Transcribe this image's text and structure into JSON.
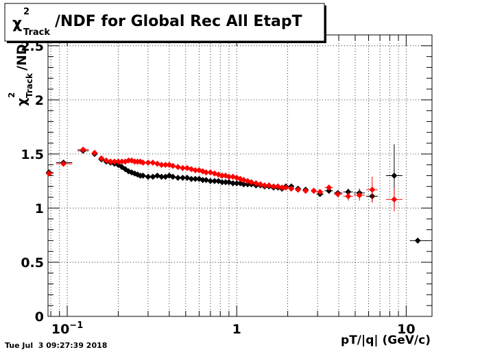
{
  "chart_data": {
    "type": "scatter",
    "title": {
      "symbol": "χ",
      "superscript": "2",
      "subscript": "Track",
      "rest": "/NDF for Global Rec All EtapT"
    },
    "xlabel": "pT/|q| (GeV/c)",
    "ylabel": {
      "symbol": "χ",
      "superscript": "2",
      "subscript": "Track",
      "rest": "/ND"
    },
    "x_scale": "log",
    "xlim": [
      0.077,
      14.2
    ],
    "ylim": [
      0,
      2.6
    ],
    "grid": true,
    "timestamp": "Tue Jul  3 09:27:39 2018",
    "x_ticks": [
      {
        "value": 0.1,
        "base": "10",
        "exp": "−1"
      },
      {
        "value": 1,
        "base": "1",
        "exp": ""
      },
      {
        "value": 10,
        "base": "10",
        "exp": ""
      }
    ],
    "y_ticks": [
      {
        "value": 0,
        "label": "0"
      },
      {
        "value": 0.5,
        "label": "0.5"
      },
      {
        "value": 1,
        "label": "1"
      },
      {
        "value": 1.5,
        "label": "1.5"
      },
      {
        "value": 2,
        "label": "2"
      },
      {
        "value": 2.5,
        "label": "2.5"
      }
    ],
    "series": [
      {
        "color": "#000000",
        "points": [
          {
            "x": 0.078,
            "y": 1.33,
            "xlo": 0.075,
            "xhi": 0.083,
            "yerr": 0.02
          },
          {
            "x": 0.095,
            "y": 1.42,
            "xlo": 0.086,
            "xhi": 0.107,
            "yerr": 0.02
          },
          {
            "x": 0.124,
            "y": 1.53,
            "xlo": 0.115,
            "xhi": 0.134,
            "yerr": 0.01
          },
          {
            "x": 0.145,
            "y": 1.5,
            "xlo": 0.14,
            "xhi": 0.15,
            "yerr": 0.01
          },
          {
            "x": 0.159,
            "y": 1.45,
            "xlo": 0.154,
            "xhi": 0.164,
            "yerr": 0.01
          },
          {
            "x": 0.17,
            "y": 1.43
          },
          {
            "x": 0.18,
            "y": 1.42
          },
          {
            "x": 0.19,
            "y": 1.41
          },
          {
            "x": 0.2,
            "y": 1.4
          },
          {
            "x": 0.21,
            "y": 1.38
          },
          {
            "x": 0.22,
            "y": 1.36
          },
          {
            "x": 0.23,
            "y": 1.34
          },
          {
            "x": 0.24,
            "y": 1.33
          },
          {
            "x": 0.25,
            "y": 1.32
          },
          {
            "x": 0.26,
            "y": 1.31
          },
          {
            "x": 0.27,
            "y": 1.3
          },
          {
            "x": 0.28,
            "y": 1.3
          },
          {
            "x": 0.3,
            "y": 1.29
          },
          {
            "x": 0.32,
            "y": 1.29
          },
          {
            "x": 0.34,
            "y": 1.3
          },
          {
            "x": 0.36,
            "y": 1.29
          },
          {
            "x": 0.38,
            "y": 1.29
          },
          {
            "x": 0.4,
            "y": 1.3
          },
          {
            "x": 0.42,
            "y": 1.29
          },
          {
            "x": 0.45,
            "y": 1.28
          },
          {
            "x": 0.48,
            "y": 1.28
          },
          {
            "x": 0.51,
            "y": 1.28
          },
          {
            "x": 0.54,
            "y": 1.27
          },
          {
            "x": 0.57,
            "y": 1.27
          },
          {
            "x": 0.6,
            "y": 1.27
          },
          {
            "x": 0.63,
            "y": 1.26
          },
          {
            "x": 0.66,
            "y": 1.26
          },
          {
            "x": 0.7,
            "y": 1.25
          },
          {
            "x": 0.74,
            "y": 1.25
          },
          {
            "x": 0.78,
            "y": 1.25
          },
          {
            "x": 0.82,
            "y": 1.24
          },
          {
            "x": 0.86,
            "y": 1.24
          },
          {
            "x": 0.9,
            "y": 1.24
          },
          {
            "x": 0.95,
            "y": 1.23
          },
          {
            "x": 1.0,
            "y": 1.23
          },
          {
            "x": 1.05,
            "y": 1.23
          },
          {
            "x": 1.1,
            "y": 1.22
          },
          {
            "x": 1.16,
            "y": 1.22
          },
          {
            "x": 1.22,
            "y": 1.22
          },
          {
            "x": 1.3,
            "y": 1.21
          },
          {
            "x": 1.38,
            "y": 1.21
          },
          {
            "x": 1.46,
            "y": 1.2
          },
          {
            "x": 1.55,
            "y": 1.2
          },
          {
            "x": 1.65,
            "y": 1.19
          },
          {
            "x": 1.75,
            "y": 1.19
          },
          {
            "x": 1.85,
            "y": 1.18
          },
          {
            "x": 1.95,
            "y": 1.2
          },
          {
            "x": 2.1,
            "y": 1.2
          },
          {
            "x": 2.3,
            "y": 1.18
          },
          {
            "x": 2.55,
            "y": 1.17
          },
          {
            "x": 2.85,
            "y": 1.16
          },
          {
            "x": 3.1,
            "y": 1.13,
            "xlo": 2.95,
            "xhi": 3.25,
            "yerr": 0.02
          },
          {
            "x": 3.5,
            "y": 1.16,
            "xlo": 3.3,
            "xhi": 3.7,
            "yerr": 0.02
          },
          {
            "x": 3.95,
            "y": 1.14,
            "xlo": 3.75,
            "xhi": 4.2,
            "yerr": 0.02
          },
          {
            "x": 4.55,
            "y": 1.15,
            "xlo": 4.25,
            "xhi": 4.85,
            "yerr": 0.03
          },
          {
            "x": 5.3,
            "y": 1.14,
            "xlo": 4.9,
            "xhi": 5.7,
            "yerr": 0.04
          },
          {
            "x": 6.3,
            "y": 1.11,
            "xlo": 5.8,
            "xhi": 6.8,
            "yerr": 0.05
          },
          {
            "x": 8.5,
            "y": 1.3,
            "xlo": 7.6,
            "xhi": 9.5,
            "yerr": 0.29
          },
          {
            "x": 11.7,
            "y": 0.7,
            "xlo": 10.5,
            "xhi": 13.3,
            "yerr": 0.0
          }
        ]
      },
      {
        "color": "#ff0000",
        "points": [
          {
            "x": 0.078,
            "y": 1.32,
            "xlo": 0.075,
            "xhi": 0.083,
            "yerr": 0.02
          },
          {
            "x": 0.095,
            "y": 1.41,
            "xlo": 0.086,
            "xhi": 0.107,
            "yerr": 0.02
          },
          {
            "x": 0.124,
            "y": 1.54,
            "xlo": 0.115,
            "xhi": 0.134,
            "yerr": 0.01
          },
          {
            "x": 0.145,
            "y": 1.51,
            "xlo": 0.14,
            "xhi": 0.15,
            "yerr": 0.01
          },
          {
            "x": 0.159,
            "y": 1.46,
            "xlo": 0.154,
            "xhi": 0.164,
            "yerr": 0.01
          },
          {
            "x": 0.17,
            "y": 1.44
          },
          {
            "x": 0.18,
            "y": 1.43
          },
          {
            "x": 0.19,
            "y": 1.43
          },
          {
            "x": 0.2,
            "y": 1.43
          },
          {
            "x": 0.21,
            "y": 1.43
          },
          {
            "x": 0.22,
            "y": 1.43
          },
          {
            "x": 0.23,
            "y": 1.44
          },
          {
            "x": 0.24,
            "y": 1.44
          },
          {
            "x": 0.25,
            "y": 1.43
          },
          {
            "x": 0.26,
            "y": 1.43
          },
          {
            "x": 0.27,
            "y": 1.43
          },
          {
            "x": 0.28,
            "y": 1.42
          },
          {
            "x": 0.3,
            "y": 1.42
          },
          {
            "x": 0.32,
            "y": 1.42
          },
          {
            "x": 0.34,
            "y": 1.41
          },
          {
            "x": 0.36,
            "y": 1.4
          },
          {
            "x": 0.38,
            "y": 1.4
          },
          {
            "x": 0.4,
            "y": 1.4
          },
          {
            "x": 0.42,
            "y": 1.39
          },
          {
            "x": 0.45,
            "y": 1.38
          },
          {
            "x": 0.48,
            "y": 1.37
          },
          {
            "x": 0.51,
            "y": 1.37
          },
          {
            "x": 0.54,
            "y": 1.36
          },
          {
            "x": 0.57,
            "y": 1.35
          },
          {
            "x": 0.6,
            "y": 1.35
          },
          {
            "x": 0.63,
            "y": 1.34
          },
          {
            "x": 0.66,
            "y": 1.33
          },
          {
            "x": 0.7,
            "y": 1.33
          },
          {
            "x": 0.74,
            "y": 1.32
          },
          {
            "x": 0.78,
            "y": 1.31
          },
          {
            "x": 0.82,
            "y": 1.3
          },
          {
            "x": 0.86,
            "y": 1.3
          },
          {
            "x": 0.9,
            "y": 1.29
          },
          {
            "x": 0.95,
            "y": 1.29
          },
          {
            "x": 1.0,
            "y": 1.28
          },
          {
            "x": 1.05,
            "y": 1.27
          },
          {
            "x": 1.1,
            "y": 1.26
          },
          {
            "x": 1.16,
            "y": 1.25
          },
          {
            "x": 1.22,
            "y": 1.24
          },
          {
            "x": 1.3,
            "y": 1.23
          },
          {
            "x": 1.38,
            "y": 1.22
          },
          {
            "x": 1.46,
            "y": 1.21
          },
          {
            "x": 1.55,
            "y": 1.21
          },
          {
            "x": 1.65,
            "y": 1.2
          },
          {
            "x": 1.75,
            "y": 1.2
          },
          {
            "x": 1.85,
            "y": 1.19
          },
          {
            "x": 1.95,
            "y": 1.19
          },
          {
            "x": 2.1,
            "y": 1.18
          },
          {
            "x": 2.3,
            "y": 1.17
          },
          {
            "x": 2.55,
            "y": 1.16
          },
          {
            "x": 2.85,
            "y": 1.16
          },
          {
            "x": 3.1,
            "y": 1.15,
            "xlo": 2.95,
            "xhi": 3.25,
            "yerr": 0.02
          },
          {
            "x": 3.5,
            "y": 1.19,
            "xlo": 3.3,
            "xhi": 3.7,
            "yerr": 0.02
          },
          {
            "x": 3.95,
            "y": 1.13,
            "xlo": 3.75,
            "xhi": 4.2,
            "yerr": 0.03
          },
          {
            "x": 4.55,
            "y": 1.11,
            "xlo": 4.25,
            "xhi": 4.85,
            "yerr": 0.04
          },
          {
            "x": 5.3,
            "y": 1.12,
            "xlo": 4.9,
            "xhi": 5.7,
            "yerr": 0.05
          },
          {
            "x": 6.3,
            "y": 1.17,
            "xlo": 5.8,
            "xhi": 6.8,
            "yerr": 0.12
          },
          {
            "x": 8.5,
            "y": 1.08,
            "xlo": 7.6,
            "xhi": 9.5,
            "yerr": 0.11
          }
        ]
      }
    ]
  }
}
